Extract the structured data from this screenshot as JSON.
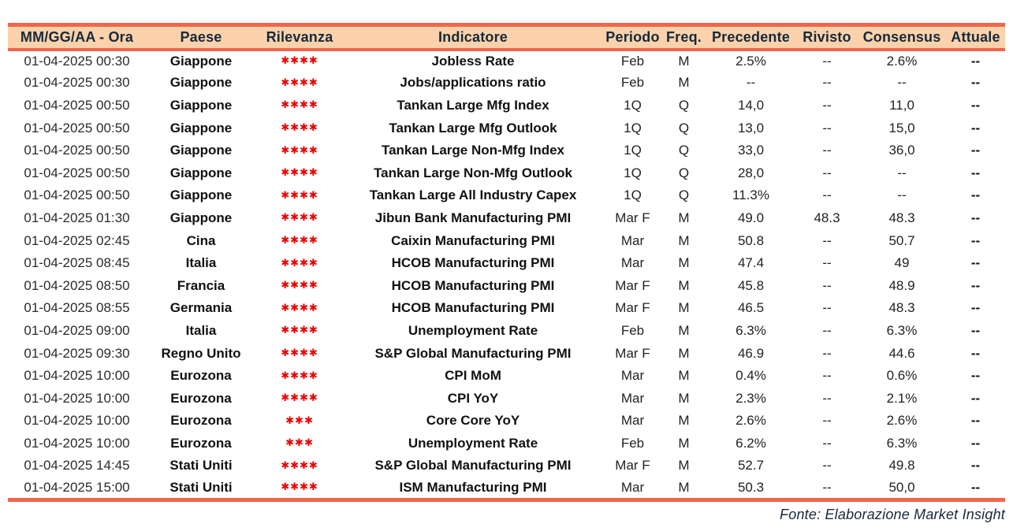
{
  "colors": {
    "accent_line": "#F0664B",
    "header_bg": "#FBD2AB",
    "header_text": "#16293B",
    "star_red": "#EE0000"
  },
  "table": {
    "columns": {
      "datetime": "MM/GG/AA - Ora",
      "country": "Paese",
      "relevance": "Rilevanza",
      "indicator": "Indicatore",
      "period": "Periodo",
      "freq": "Freq.",
      "previous": "Precedente",
      "revised": "Rivisto",
      "consensus": "Consensus",
      "actual": "Attuale"
    },
    "rows": [
      {
        "datetime": "01-04-2025 00:30",
        "country": "Giappone",
        "relevance": "✱✱✱✱",
        "indicator": "Jobless Rate",
        "period": "Feb",
        "freq": "M",
        "previous": "2.5%",
        "revised": "--",
        "consensus": "2.6%",
        "actual": "--"
      },
      {
        "datetime": "01-04-2025 00:30",
        "country": "Giappone",
        "relevance": "✱✱✱✱",
        "indicator": "Jobs/applications ratio",
        "period": "Feb",
        "freq": "M",
        "previous": "--",
        "revised": "--",
        "consensus": "--",
        "actual": "--"
      },
      {
        "datetime": "01-04-2025 00:50",
        "country": "Giappone",
        "relevance": "✱✱✱✱",
        "indicator": "Tankan Large Mfg Index",
        "period": "1Q",
        "freq": "Q",
        "previous": "14,0",
        "revised": "--",
        "consensus": "11,0",
        "actual": "--"
      },
      {
        "datetime": "01-04-2025 00:50",
        "country": "Giappone",
        "relevance": "✱✱✱✱",
        "indicator": "Tankan Large Mfg Outlook",
        "period": "1Q",
        "freq": "Q",
        "previous": "13,0",
        "revised": "--",
        "consensus": "15,0",
        "actual": "--"
      },
      {
        "datetime": "01-04-2025 00:50",
        "country": "Giappone",
        "relevance": "✱✱✱✱",
        "indicator": "Tankan Large Non-Mfg Index",
        "period": "1Q",
        "freq": "Q",
        "previous": "33,0",
        "revised": "--",
        "consensus": "36,0",
        "actual": "--"
      },
      {
        "datetime": "01-04-2025 00:50",
        "country": "Giappone",
        "relevance": "✱✱✱✱",
        "indicator": "Tankan Large Non-Mfg Outlook",
        "period": "1Q",
        "freq": "Q",
        "previous": "28,0",
        "revised": "--",
        "consensus": "--",
        "actual": "--"
      },
      {
        "datetime": "01-04-2025 00:50",
        "country": "Giappone",
        "relevance": "✱✱✱✱",
        "indicator": "Tankan Large All Industry Capex",
        "period": "1Q",
        "freq": "Q",
        "previous": "11.3%",
        "revised": "--",
        "consensus": "--",
        "actual": "--"
      },
      {
        "datetime": "01-04-2025 01:30",
        "country": "Giappone",
        "relevance": "✱✱✱✱",
        "indicator": "Jibun Bank Manufacturing PMI",
        "period": "Mar F",
        "freq": "M",
        "previous": "49.0",
        "revised": "48.3",
        "consensus": "48.3",
        "actual": "--"
      },
      {
        "datetime": "01-04-2025 02:45",
        "country": "Cina",
        "relevance": "✱✱✱✱",
        "indicator": "Caixin Manufacturing PMI",
        "period": "Mar",
        "freq": "M",
        "previous": "50.8",
        "revised": "--",
        "consensus": "50.7",
        "actual": "--"
      },
      {
        "datetime": "01-04-2025 08:45",
        "country": "Italia",
        "relevance": "✱✱✱✱",
        "indicator": "HCOB Manufacturing PMI",
        "period": "Mar",
        "freq": "M",
        "previous": "47.4",
        "revised": "--",
        "consensus": "49",
        "actual": "--"
      },
      {
        "datetime": "01-04-2025 08:50",
        "country": "Francia",
        "relevance": "✱✱✱✱",
        "indicator": "HCOB Manufacturing PMI",
        "period": "Mar F",
        "freq": "M",
        "previous": "45.8",
        "revised": "--",
        "consensus": "48.9",
        "actual": "--"
      },
      {
        "datetime": "01-04-2025 08:55",
        "country": "Germania",
        "relevance": "✱✱✱✱",
        "indicator": "HCOB Manufacturing PMI",
        "period": "Mar F",
        "freq": "M",
        "previous": "46.5",
        "revised": "--",
        "consensus": "48.3",
        "actual": "--"
      },
      {
        "datetime": "01-04-2025 09:00",
        "country": "Italia",
        "relevance": "✱✱✱✱",
        "indicator": "Unemployment Rate",
        "period": "Feb",
        "freq": "M",
        "previous": "6.3%",
        "revised": "--",
        "consensus": "6.3%",
        "actual": "--"
      },
      {
        "datetime": "01-04-2025 09:30",
        "country": "Regno Unito",
        "relevance": "✱✱✱✱",
        "indicator": "S&P Global Manufacturing PMI",
        "period": "Mar F",
        "freq": "M",
        "previous": "46.9",
        "revised": "--",
        "consensus": "44.6",
        "actual": "--"
      },
      {
        "datetime": "01-04-2025 10:00",
        "country": "Eurozona",
        "relevance": "✱✱✱✱",
        "indicator": "CPI MoM",
        "period": "Mar",
        "freq": "M",
        "previous": "0.4%",
        "revised": "--",
        "consensus": "0.6%",
        "actual": "--"
      },
      {
        "datetime": "01-04-2025 10:00",
        "country": "Eurozona",
        "relevance": "✱✱✱✱",
        "indicator": "CPI YoY",
        "period": "Mar",
        "freq": "M",
        "previous": "2.3%",
        "revised": "--",
        "consensus": "2.1%",
        "actual": "--"
      },
      {
        "datetime": "01-04-2025 10:00",
        "country": "Eurozona",
        "relevance": "✱✱✱",
        "indicator": "Core Core YoY",
        "period": "Mar",
        "freq": "M",
        "previous": "2.6%",
        "revised": "--",
        "consensus": "2.6%",
        "actual": "--"
      },
      {
        "datetime": "01-04-2025 10:00",
        "country": "Eurozona",
        "relevance": "✱✱✱",
        "indicator": "Unemployment Rate",
        "period": "Feb",
        "freq": "M",
        "previous": "6.2%",
        "revised": "--",
        "consensus": "6.3%",
        "actual": "--"
      },
      {
        "datetime": "01-04-2025 14:45",
        "country": "Stati Uniti",
        "relevance": "✱✱✱✱",
        "indicator": "S&P Global Manufacturing PMI",
        "period": "Mar F",
        "freq": "M",
        "previous": "52.7",
        "revised": "--",
        "consensus": "49.8",
        "actual": "--"
      },
      {
        "datetime": "01-04-2025 15:00",
        "country": "Stati Uniti",
        "relevance": "✱✱✱✱",
        "indicator": "ISM Manufacturing PMI",
        "period": "Mar",
        "freq": "M",
        "previous": "50.3",
        "revised": "--",
        "consensus": "50,0",
        "actual": "--"
      }
    ]
  },
  "footer": {
    "source": "Fonte: Elaborazione Market Insight"
  }
}
